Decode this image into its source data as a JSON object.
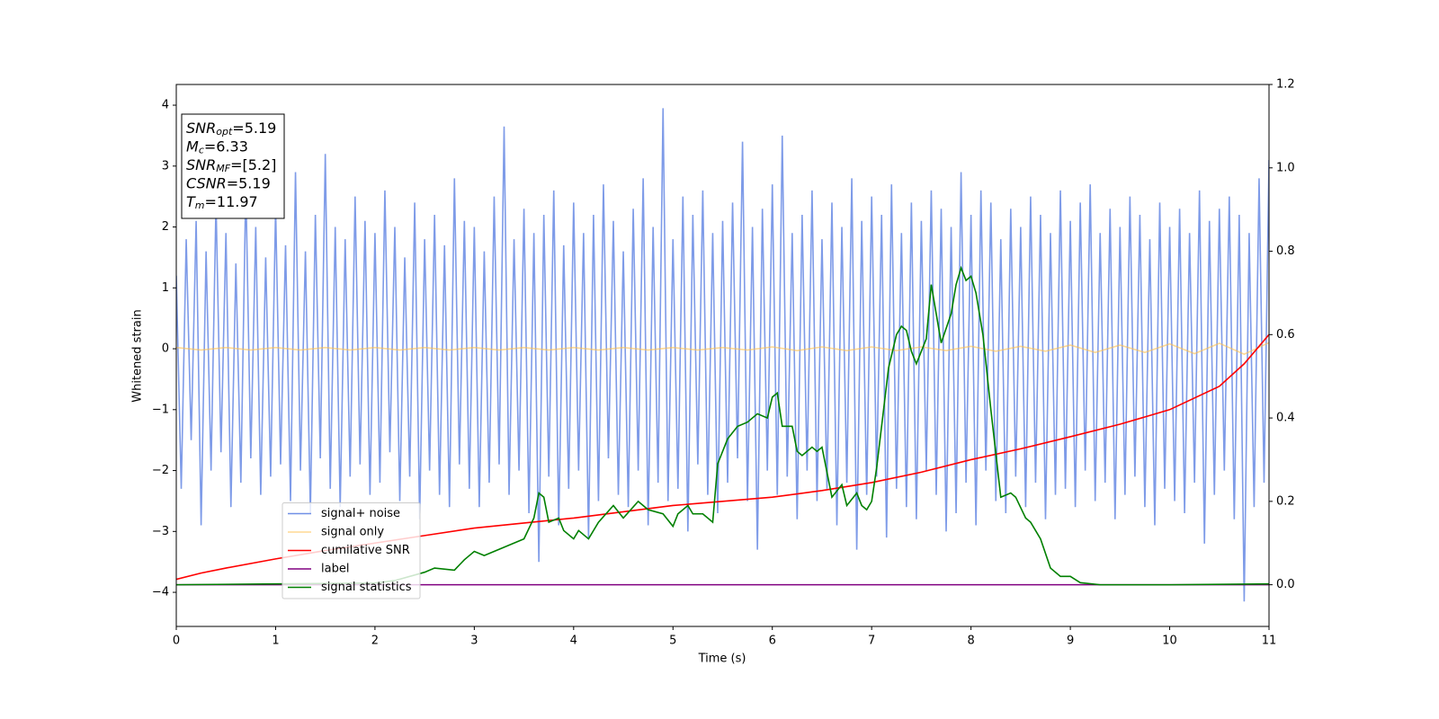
{
  "chart_data": {
    "type": "line",
    "xlabel": "Time (s)",
    "ylabel": "Whitened strain",
    "xlim": [
      0,
      11
    ],
    "ylim": [
      -4.56,
      4.34
    ],
    "y2lim": [
      -0.1,
      1.2
    ],
    "xticks": [
      0,
      1,
      2,
      3,
      4,
      5,
      6,
      7,
      8,
      9,
      10,
      11
    ],
    "yticks": [
      {
        "value": -4,
        "label": "−4"
      },
      {
        "value": -3,
        "label": "−3"
      },
      {
        "value": -2,
        "label": "−2"
      },
      {
        "value": -1,
        "label": "−1"
      },
      0,
      1,
      2,
      3,
      4
    ],
    "y2ticks": [
      {
        "value": 0,
        "label": "0.0"
      },
      0.2,
      0.4,
      0.6,
      0.8,
      {
        "value": 1,
        "label": "1.0"
      },
      1.2
    ],
    "legend_loc": "lower left",
    "annotation": [
      {
        "base": "SNR",
        "sub": "opt",
        "text": "=5.19"
      },
      {
        "base": "M",
        "sub": "c",
        "text": "=6.33"
      },
      {
        "base": "SNR",
        "sub": "MF",
        "text": "=[5.2]"
      },
      {
        "base": "CSNR",
        "text": "=5.19"
      },
      {
        "base": "T",
        "sub": "m",
        "text": "=11.97"
      }
    ],
    "series": [
      {
        "name": "signal+ noise",
        "color": "#7090e6",
        "x": [
          0,
          0.05,
          0.1,
          0.15,
          0.2,
          0.25,
          0.3,
          0.35,
          0.4,
          0.45,
          0.5,
          0.55,
          0.6,
          0.65,
          0.7,
          0.75,
          0.8,
          0.85,
          0.9,
          0.95,
          1,
          1.05,
          1.1,
          1.15,
          1.2,
          1.25,
          1.3,
          1.35,
          1.4,
          1.45,
          1.5,
          1.55,
          1.6,
          1.65,
          1.7,
          1.75,
          1.8,
          1.85,
          1.9,
          1.95,
          2,
          2.05,
          2.1,
          2.15,
          2.2,
          2.25,
          2.3,
          2.35,
          2.4,
          2.45,
          2.5,
          2.55,
          2.6,
          2.65,
          2.7,
          2.75,
          2.8,
          2.85,
          2.9,
          2.95,
          3,
          3.05,
          3.1,
          3.15,
          3.2,
          3.25,
          3.3,
          3.35,
          3.4,
          3.45,
          3.5,
          3.55,
          3.6,
          3.65,
          3.7,
          3.75,
          3.8,
          3.85,
          3.9,
          3.95,
          4,
          4.05,
          4.1,
          4.15,
          4.2,
          4.25,
          4.3,
          4.35,
          4.4,
          4.45,
          4.5,
          4.55,
          4.6,
          4.65,
          4.7,
          4.75,
          4.8,
          4.85,
          4.9,
          4.95,
          5,
          5.05,
          5.1,
          5.15,
          5.2,
          5.25,
          5.3,
          5.35,
          5.4,
          5.45,
          5.5,
          5.55,
          5.6,
          5.65,
          5.7,
          5.75,
          5.8,
          5.85,
          5.9,
          5.95,
          6,
          6.05,
          6.1,
          6.15,
          6.2,
          6.25,
          6.3,
          6.35,
          6.4,
          6.45,
          6.5,
          6.55,
          6.6,
          6.65,
          6.7,
          6.75,
          6.8,
          6.85,
          6.9,
          6.95,
          7,
          7.05,
          7.1,
          7.15,
          7.2,
          7.25,
          7.3,
          7.35,
          7.4,
          7.45,
          7.5,
          7.55,
          7.6,
          7.65,
          7.7,
          7.75,
          7.8,
          7.85,
          7.9,
          7.95,
          8,
          8.05,
          8.1,
          8.15,
          8.2,
          8.25,
          8.3,
          8.35,
          8.4,
          8.45,
          8.5,
          8.55,
          8.6,
          8.65,
          8.7,
          8.75,
          8.8,
          8.85,
          8.9,
          8.95,
          9,
          9.05,
          9.1,
          9.15,
          9.2,
          9.25,
          9.3,
          9.35,
          9.4,
          9.45,
          9.5,
          9.55,
          9.6,
          9.65,
          9.7,
          9.75,
          9.8,
          9.85,
          9.9,
          9.95,
          10,
          10.05,
          10.1,
          10.15,
          10.2,
          10.25,
          10.3,
          10.35,
          10.4,
          10.45,
          10.5,
          10.55,
          10.6,
          10.65,
          10.7,
          10.75,
          10.8,
          10.85,
          10.9,
          10.95,
          11
        ],
        "values": [
          1.2,
          -2.3,
          1.8,
          -1.5,
          2.1,
          -2.9,
          1.6,
          -2.0,
          2.4,
          -1.7,
          1.9,
          -2.6,
          1.4,
          -2.2,
          2.7,
          -1.8,
          2.0,
          -2.4,
          1.5,
          -2.1,
          2.3,
          -1.9,
          1.7,
          -2.5,
          2.9,
          -2.0,
          1.6,
          -2.7,
          2.2,
          -1.8,
          3.2,
          -2.3,
          2.0,
          -2.6,
          1.8,
          -2.1,
          2.5,
          -1.9,
          2.1,
          -2.4,
          1.9,
          -2.2,
          2.6,
          -1.7,
          2.0,
          -2.5,
          1.5,
          -2.1,
          2.4,
          -2.8,
          1.8,
          -2.0,
          2.2,
          -2.4,
          1.7,
          -2.6,
          2.8,
          -1.9,
          2.1,
          -2.3,
          2.0,
          -2.6,
          1.6,
          -2.2,
          2.5,
          -1.9,
          3.65,
          -2.4,
          1.8,
          -2.0,
          2.3,
          -2.7,
          1.9,
          -3.5,
          2.2,
          -2.1,
          2.6,
          -2.9,
          1.7,
          -2.3,
          2.4,
          -2.0,
          1.9,
          -3.1,
          2.2,
          -2.5,
          2.7,
          -1.8,
          2.1,
          -2.4,
          1.6,
          -2.6,
          2.3,
          -2.0,
          2.8,
          -2.9,
          2.0,
          -2.2,
          3.95,
          -2.5,
          1.8,
          -2.3,
          2.5,
          -3.0,
          2.2,
          -1.9,
          2.6,
          -2.4,
          1.9,
          -2.7,
          2.1,
          -2.2,
          2.4,
          -1.8,
          3.4,
          -2.5,
          2.0,
          -3.3,
          2.3,
          -2.0,
          2.7,
          -2.4,
          3.5,
          -2.1,
          1.9,
          -2.8,
          2.2,
          -2.0,
          2.6,
          -2.5,
          1.8,
          -2.3,
          2.4,
          -2.9,
          2.0,
          -2.2,
          2.8,
          -3.3,
          2.1,
          -2.4,
          2.5,
          -2.1,
          2.2,
          -3.1,
          2.7,
          -2.3,
          1.9,
          -2.6,
          2.4,
          -2.8,
          2.1,
          -2.0,
          2.6,
          -2.4,
          2.3,
          -3.0,
          2.0,
          -2.7,
          2.9,
          -2.2,
          2.2,
          -2.9,
          2.6,
          -2.0,
          2.4,
          -2.5,
          1.8,
          -2.7,
          2.3,
          -2.1,
          2.0,
          -2.6,
          2.5,
          -2.2,
          2.2,
          -2.8,
          1.9,
          -2.4,
          2.6,
          -2.3,
          2.1,
          -2.6,
          2.4,
          -2.0,
          2.7,
          -2.5,
          1.9,
          -2.2,
          2.3,
          -2.8,
          2.0,
          -2.4,
          2.5,
          -2.1,
          2.2,
          -2.6,
          1.8,
          -2.9,
          2.4,
          -2.3,
          2.0,
          -2.5,
          2.3,
          -2.7,
          1.9,
          -2.2,
          2.6,
          -3.2,
          2.1,
          -2.4,
          2.3,
          -2.0,
          2.5,
          -2.8,
          2.2,
          -4.15,
          1.9,
          -2.6,
          2.8,
          -2.2,
          3.1
        ]
      },
      {
        "name": "signal only",
        "color": "#ffc04d",
        "x": [
          0,
          0.25,
          0.5,
          0.75,
          1,
          1.25,
          1.5,
          1.75,
          2,
          2.25,
          2.5,
          2.75,
          3,
          3.25,
          3.5,
          3.75,
          4,
          4.25,
          4.5,
          4.75,
          5,
          5.25,
          5.5,
          5.75,
          6,
          6.25,
          6.5,
          6.75,
          7,
          7.25,
          7.5,
          7.75,
          8,
          8.25,
          8.5,
          8.75,
          9,
          9.25,
          9.5,
          9.75,
          10,
          10.25,
          10.5,
          10.75,
          11
        ],
        "values": [
          0.02,
          -0.02,
          0.02,
          -0.02,
          0.02,
          -0.02,
          0.02,
          -0.02,
          0.02,
          -0.02,
          0.02,
          -0.02,
          0.02,
          -0.02,
          0.02,
          -0.02,
          0.02,
          -0.02,
          0.02,
          -0.02,
          0.02,
          -0.02,
          0.02,
          -0.02,
          0.03,
          -0.03,
          0.03,
          -0.03,
          0.03,
          -0.03,
          0.03,
          -0.03,
          0.04,
          -0.04,
          0.04,
          -0.04,
          0.06,
          -0.06,
          0.06,
          -0.06,
          0.08,
          -0.08,
          0.09,
          -0.09,
          0.1
        ]
      },
      {
        "name": "cumilative SNR",
        "color": "#ff0000",
        "axis": "y2",
        "x": [
          0,
          0.25,
          0.5,
          1,
          1.5,
          2,
          2.5,
          3,
          3.5,
          4,
          4.5,
          5,
          5.5,
          6,
          6.5,
          7,
          7.5,
          8,
          8.5,
          9,
          9.5,
          10,
          10.5,
          10.75,
          11
        ],
        "values": [
          0.013,
          0.028,
          0.04,
          0.062,
          0.082,
          0.1,
          0.118,
          0.136,
          0.148,
          0.16,
          0.175,
          0.19,
          0.2,
          0.21,
          0.226,
          0.245,
          0.27,
          0.3,
          0.326,
          0.355,
          0.385,
          0.42,
          0.476,
          0.53,
          0.6
        ]
      },
      {
        "name": "label",
        "color": "#800080",
        "axis": "y2",
        "x": [
          0,
          11
        ],
        "values": [
          0,
          0
        ]
      },
      {
        "name": "signal statistics",
        "color": "#008000",
        "axis": "y2",
        "x": [
          0,
          1,
          2,
          2.2,
          2.5,
          2.6,
          2.8,
          2.9,
          3.0,
          3.1,
          3.3,
          3.5,
          3.6,
          3.65,
          3.7,
          3.75,
          3.85,
          3.9,
          4.0,
          4.05,
          4.15,
          4.25,
          4.4,
          4.5,
          4.65,
          4.75,
          4.9,
          5.0,
          5.05,
          5.15,
          5.2,
          5.3,
          5.4,
          5.45,
          5.55,
          5.65,
          5.75,
          5.85,
          5.95,
          6.0,
          6.05,
          6.1,
          6.2,
          6.25,
          6.3,
          6.4,
          6.45,
          6.5,
          6.6,
          6.7,
          6.75,
          6.85,
          6.9,
          6.95,
          7.0,
          7.05,
          7.12,
          7.17,
          7.25,
          7.3,
          7.35,
          7.4,
          7.45,
          7.55,
          7.6,
          7.7,
          7.8,
          7.85,
          7.9,
          7.95,
          8.0,
          8.05,
          8.12,
          8.2,
          8.3,
          8.4,
          8.45,
          8.55,
          8.6,
          8.7,
          8.8,
          8.9,
          9.0,
          9.1,
          9.3,
          10,
          11
        ],
        "values": [
          0,
          0.002,
          0.004,
          0.01,
          0.03,
          0.04,
          0.035,
          0.06,
          0.08,
          0.07,
          0.09,
          0.11,
          0.16,
          0.22,
          0.21,
          0.15,
          0.16,
          0.13,
          0.11,
          0.13,
          0.11,
          0.15,
          0.19,
          0.16,
          0.2,
          0.18,
          0.17,
          0.14,
          0.17,
          0.19,
          0.17,
          0.17,
          0.15,
          0.29,
          0.35,
          0.38,
          0.39,
          0.41,
          0.4,
          0.45,
          0.46,
          0.38,
          0.38,
          0.32,
          0.31,
          0.33,
          0.32,
          0.33,
          0.21,
          0.24,
          0.19,
          0.22,
          0.19,
          0.18,
          0.2,
          0.28,
          0.42,
          0.52,
          0.6,
          0.62,
          0.61,
          0.56,
          0.53,
          0.59,
          0.72,
          0.58,
          0.65,
          0.72,
          0.76,
          0.73,
          0.74,
          0.7,
          0.6,
          0.42,
          0.21,
          0.22,
          0.21,
          0.16,
          0.15,
          0.11,
          0.04,
          0.02,
          0.02,
          0.005,
          0,
          0,
          0.002
        ]
      }
    ]
  }
}
